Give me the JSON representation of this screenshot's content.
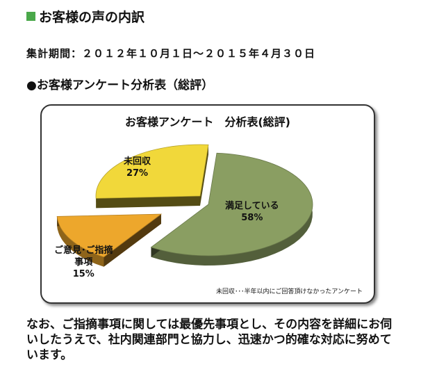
{
  "page": {
    "heading": "お客様の声の内訳",
    "period": "集計期間：２０１２年１０月１日～２０１５年４月３０日",
    "subheading": "●お客様アンケート分析表（総評）",
    "bottom_text": "なお、ご指摘事項に関しては最優先事項とし、その内容を詳細にお伺いしたうえで、社内関連部門と協力し、迅速かつ的確な対応に努めています。"
  },
  "chart_data": {
    "type": "pie",
    "title": "お客様アンケート　分析表(総評)",
    "slices": [
      {
        "label": "満足している",
        "value": 58,
        "display": "58%",
        "color": "#8a9e62"
      },
      {
        "label": "ご意見･ご指摘事項",
        "value": 15,
        "display": "15%",
        "color": "#eda72c"
      },
      {
        "label": "未回収",
        "value": 27,
        "display": "27%",
        "color": "#f1d83a"
      }
    ],
    "note": "未回収･･･半年以内にご回答頂けなかったアンケート"
  }
}
